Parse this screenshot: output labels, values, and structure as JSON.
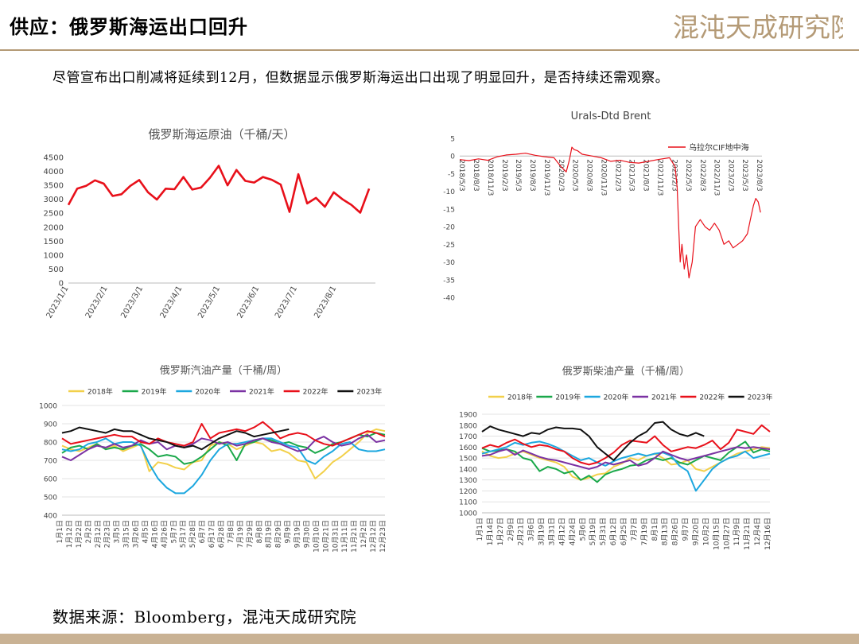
{
  "slide": {
    "title": "供应：俄罗斯海运出口回升",
    "logo_text": "混沌天成研究院",
    "subtitle": "尽管宣布出口削减将延续到12月，但数据显示俄罗斯海运出口出现了明显回升，是否持续还需观察。",
    "source": "数据来源：Bloomberg，混沌天成研究院",
    "accent_color": "#b49a76"
  },
  "chart_data": [
    {
      "type": "line",
      "title": "俄罗斯海运原油（千桶/天）",
      "ylim": [
        0,
        4500
      ],
      "yticks": [
        0,
        500,
        1000,
        1500,
        2000,
        2500,
        3000,
        3500,
        4000,
        4500
      ],
      "xlim": [
        "2023-01-01",
        "2023-09-01"
      ],
      "xticks": [
        "2023/1/1",
        "2023/2/1",
        "2023/3/1",
        "2023/4/1",
        "2023/5/1",
        "2023/6/1",
        "2023/7/1",
        "2023/8/1"
      ],
      "series": [
        {
          "color": "#e8101a",
          "x": [
            "2023-01-01",
            "2023-01-08",
            "2023-01-15",
            "2023-01-22",
            "2023-01-29",
            "2023-02-05",
            "2023-02-12",
            "2023-02-19",
            "2023-02-26",
            "2023-03-05",
            "2023-03-12",
            "2023-03-19",
            "2023-03-26",
            "2023-04-02",
            "2023-04-09",
            "2023-04-16",
            "2023-04-23",
            "2023-04-30",
            "2023-05-07",
            "2023-05-14",
            "2023-05-21",
            "2023-05-28",
            "2023-06-04",
            "2023-06-11",
            "2023-06-18",
            "2023-06-25",
            "2023-07-02",
            "2023-07-09",
            "2023-07-16",
            "2023-07-23",
            "2023-07-30",
            "2023-08-06",
            "2023-08-13",
            "2023-08-20",
            "2023-08-27"
          ],
          "y": [
            2800,
            3380,
            3480,
            3680,
            3560,
            3120,
            3180,
            3480,
            3690,
            3250,
            2990,
            3380,
            3360,
            3800,
            3350,
            3420,
            3770,
            4200,
            3500,
            4050,
            3660,
            3600,
            3800,
            3700,
            3530,
            2550,
            3900,
            2850,
            3050,
            2730,
            3250,
            3000,
            2800,
            2520,
            3380
          ]
        }
      ]
    },
    {
      "type": "line",
      "title": "Urals-Dtd Brent",
      "ylim": [
        -40,
        5
      ],
      "yticks": [
        5,
        0,
        -5,
        -10,
        -15,
        -20,
        -25,
        -30,
        -35,
        -40
      ],
      "xlim": [
        "2018-05-03",
        "2023-09-03"
      ],
      "xticks": [
        "2018/5/3",
        "2018/8/3",
        "2018/11/3",
        "2019/2/3",
        "2019/5/3",
        "2019/8/3",
        "2019/11/3",
        "2020/2/3",
        "2020/5/3",
        "2020/8/3",
        "2020/11/3",
        "2021/2/3",
        "2021/5/3",
        "2021/8/3",
        "2021/11/3",
        "2022/2/3",
        "2022/5/3",
        "2022/8/3",
        "2022/11/3",
        "2023/2/3",
        "2023/5/3",
        "2023/8/3"
      ],
      "legend": "top-right",
      "series": [
        {
          "name": "乌拉尔CIF地中海",
          "color": "#e8101a",
          "x": [
            "2018-05-03",
            "2018-07-01",
            "2018-09-01",
            "2018-11-01",
            "2019-01-01",
            "2019-03-01",
            "2019-05-01",
            "2019-07-01",
            "2019-09-01",
            "2019-11-01",
            "2020-01-01",
            "2020-02-15",
            "2020-03-20",
            "2020-04-10",
            "2020-04-25",
            "2020-05-10",
            "2020-06-01",
            "2020-07-01",
            "2020-09-01",
            "2020-11-01",
            "2021-01-01",
            "2021-03-01",
            "2021-05-01",
            "2021-07-01",
            "2021-09-01",
            "2021-11-01",
            "2022-01-15",
            "2022-02-20",
            "2022-03-05",
            "2022-03-15",
            "2022-03-25",
            "2022-04-05",
            "2022-04-20",
            "2022-05-05",
            "2022-05-20",
            "2022-06-10",
            "2022-07-01",
            "2022-08-01",
            "2022-09-01",
            "2022-10-01",
            "2022-11-01",
            "2022-12-01",
            "2023-01-01",
            "2023-02-01",
            "2023-03-01",
            "2023-04-01",
            "2023-05-01",
            "2023-06-01",
            "2023-06-20",
            "2023-07-10",
            "2023-07-25",
            "2023-08-10",
            "2023-08-25"
          ],
          "y": [
            -1,
            -1.3,
            -0.8,
            -1.2,
            -0.2,
            0.3,
            0.5,
            0.8,
            0.2,
            -0.2,
            -0.5,
            -3,
            -4.5,
            -1,
            2.5,
            1.8,
            1.5,
            0.5,
            0,
            -0.5,
            -1.5,
            -1.2,
            -1.8,
            -2,
            -1.5,
            -1,
            -0.5,
            -3,
            -9,
            -20,
            -30,
            -25,
            -32,
            -28,
            -34.5,
            -30,
            -20,
            -18,
            -20,
            -21,
            -19,
            -21,
            -25,
            -24,
            -26,
            -25,
            -24,
            -22,
            -18,
            -14,
            -12,
            -13,
            -16
          ]
        }
      ]
    },
    {
      "type": "line",
      "title": "俄罗斯汽油产量（千桶/周）",
      "ylim": [
        400,
        1000
      ],
      "yticks": [
        400,
        500,
        600,
        700,
        800,
        900,
        1000
      ],
      "xticks": [
        "1月1日",
        "1月12日",
        "1月22日",
        "2月2日",
        "2月12日",
        "2月23日",
        "3月5日",
        "3月15日",
        "3月26日",
        "4月5日",
        "4月16日",
        "4月26日",
        "5月7日",
        "5月17日",
        "5月28日",
        "6月7日",
        "6月17日",
        "6月28日",
        "7月8日",
        "7月19日",
        "7月29日",
        "8月8日",
        "8月19日",
        "8月29日",
        "9月9日",
        "9月19日",
        "9月30日",
        "10月10日",
        "10月21日",
        "10月31日",
        "11月11日",
        "11月21日",
        "12月2日",
        "12月12日",
        "12月23日"
      ],
      "legend": "top",
      "series": [
        {
          "name": "2018年",
          "color": "#f2d04a",
          "values": [
            780,
            760,
            750,
            770,
            790,
            760,
            780,
            750,
            770,
            790,
            640,
            690,
            680,
            660,
            650,
            690,
            700,
            780,
            800,
            790,
            760,
            780,
            800,
            790,
            750,
            760,
            740,
            700,
            690,
            600,
            640,
            690,
            720,
            760,
            800,
            850,
            870,
            860
          ]
        },
        {
          "name": "2019年",
          "color": "#1aa84a",
          "values": [
            740,
            770,
            780,
            760,
            790,
            760,
            770,
            760,
            780,
            790,
            760,
            720,
            730,
            720,
            680,
            690,
            720,
            760,
            800,
            780,
            700,
            790,
            800,
            820,
            810,
            790,
            800,
            780,
            770,
            740,
            760,
            790,
            800,
            820,
            840,
            830,
            850,
            840
          ]
        },
        {
          "name": "2020年",
          "color": "#1ca7df",
          "values": [
            760,
            750,
            760,
            790,
            800,
            820,
            790,
            800,
            800,
            780,
            680,
            600,
            550,
            520,
            520,
            560,
            620,
            700,
            760,
            790,
            790,
            800,
            810,
            820,
            820,
            800,
            780,
            770,
            700,
            680,
            720,
            750,
            790,
            800,
            760,
            750,
            750,
            760
          ]
        },
        {
          "name": "2021年",
          "color": "#7b32a3",
          "values": [
            720,
            700,
            730,
            760,
            780,
            770,
            790,
            770,
            780,
            810,
            790,
            800,
            760,
            780,
            770,
            790,
            820,
            810,
            790,
            800,
            780,
            790,
            810,
            820,
            800,
            790,
            770,
            750,
            760,
            810,
            830,
            800,
            780,
            790,
            820,
            840,
            800,
            810
          ]
        },
        {
          "name": "2022年",
          "color": "#e8101a",
          "values": [
            820,
            790,
            800,
            810,
            820,
            830,
            840,
            830,
            830,
            800,
            790,
            820,
            800,
            790,
            780,
            800,
            900,
            820,
            850,
            860,
            870,
            860,
            880,
            910,
            870,
            820,
            840,
            850,
            840,
            810,
            790,
            780,
            800,
            820,
            840,
            860,
            850,
            830
          ]
        },
        {
          "name": "2023年",
          "color": "#111111",
          "values": [
            850,
            860,
            880,
            870,
            860,
            850,
            870,
            860,
            860,
            840,
            820,
            810,
            800,
            780,
            770,
            780,
            760,
            790,
            820,
            840,
            860,
            850,
            830,
            840,
            850,
            860,
            870
          ]
        }
      ]
    },
    {
      "type": "line",
      "title": "俄罗斯柴油产量（千桶/周）",
      "ylim": [
        1000,
        1900
      ],
      "yticks": [
        1000,
        1100,
        1200,
        1300,
        1400,
        1500,
        1600,
        1700,
        1800,
        1900
      ],
      "xticks": [
        "1月1日",
        "1月14日",
        "1月27日",
        "2月9日",
        "2月21日",
        "3月6日",
        "3月19日",
        "3月31日",
        "4月12日",
        "4月24日",
        "5月6日",
        "5月19日",
        "5月31日",
        "6月12日",
        "6月25日",
        "7月7日",
        "7月19日",
        "8月1日",
        "8月13日",
        "8月26日",
        "9月7日",
        "9月20日",
        "10月2日",
        "10月15日",
        "10月27日",
        "11月9日",
        "11月21日",
        "12月4日",
        "12月16日"
      ],
      "legend": "top",
      "series": [
        {
          "name": "2018年",
          "color": "#f2d04a",
          "values": [
            1560,
            1520,
            1500,
            1510,
            1540,
            1560,
            1530,
            1500,
            1480,
            1460,
            1420,
            1330,
            1300,
            1320,
            1350,
            1360,
            1420,
            1450,
            1500,
            1480,
            1520,
            1540,
            1500,
            1440,
            1450,
            1480,
            1400,
            1380,
            1420,
            1460,
            1500,
            1540,
            1560,
            1580,
            1600,
            1590
          ]
        },
        {
          "name": "2019年",
          "color": "#1aa84a",
          "values": [
            1590,
            1560,
            1570,
            1580,
            1560,
            1500,
            1480,
            1380,
            1420,
            1400,
            1360,
            1380,
            1300,
            1340,
            1280,
            1350,
            1380,
            1400,
            1430,
            1440,
            1480,
            1500,
            1480,
            1500,
            1460,
            1440,
            1480,
            1520,
            1500,
            1480,
            1550,
            1600,
            1650,
            1550,
            1580,
            1560
          ]
        },
        {
          "name": "2020年",
          "color": "#1ca7df",
          "values": [
            1540,
            1560,
            1580,
            1600,
            1640,
            1620,
            1640,
            1650,
            1630,
            1600,
            1560,
            1520,
            1480,
            1500,
            1460,
            1430,
            1470,
            1500,
            1520,
            1540,
            1520,
            1540,
            1550,
            1520,
            1430,
            1380,
            1200,
            1300,
            1400,
            1460,
            1500,
            1520,
            1560,
            1500,
            1520,
            1540
          ]
        },
        {
          "name": "2021年",
          "color": "#7b32a3",
          "values": [
            1520,
            1530,
            1560,
            1580,
            1530,
            1570,
            1540,
            1510,
            1490,
            1480,
            1460,
            1440,
            1420,
            1400,
            1420,
            1460,
            1440,
            1460,
            1480,
            1430,
            1450,
            1500,
            1560,
            1530,
            1500,
            1480,
            1500,
            1520,
            1540,
            1560,
            1580,
            1600,
            1590,
            1600,
            1590,
            1580
          ]
        },
        {
          "name": "2022年",
          "color": "#e8101a",
          "values": [
            1590,
            1620,
            1600,
            1640,
            1670,
            1630,
            1600,
            1620,
            1610,
            1580,
            1560,
            1500,
            1460,
            1440,
            1460,
            1500,
            1550,
            1620,
            1660,
            1650,
            1640,
            1700,
            1620,
            1560,
            1580,
            1600,
            1590,
            1620,
            1660,
            1580,
            1640,
            1760,
            1740,
            1720,
            1800,
            1740
          ]
        },
        {
          "name": "2023年",
          "color": "#111111",
          "values": [
            1740,
            1790,
            1760,
            1740,
            1720,
            1700,
            1730,
            1720,
            1760,
            1780,
            1770,
            1770,
            1760,
            1700,
            1600,
            1540,
            1480,
            1560,
            1640,
            1700,
            1740,
            1820,
            1830,
            1760,
            1720,
            1700,
            1730,
            1700
          ]
        }
      ]
    }
  ]
}
